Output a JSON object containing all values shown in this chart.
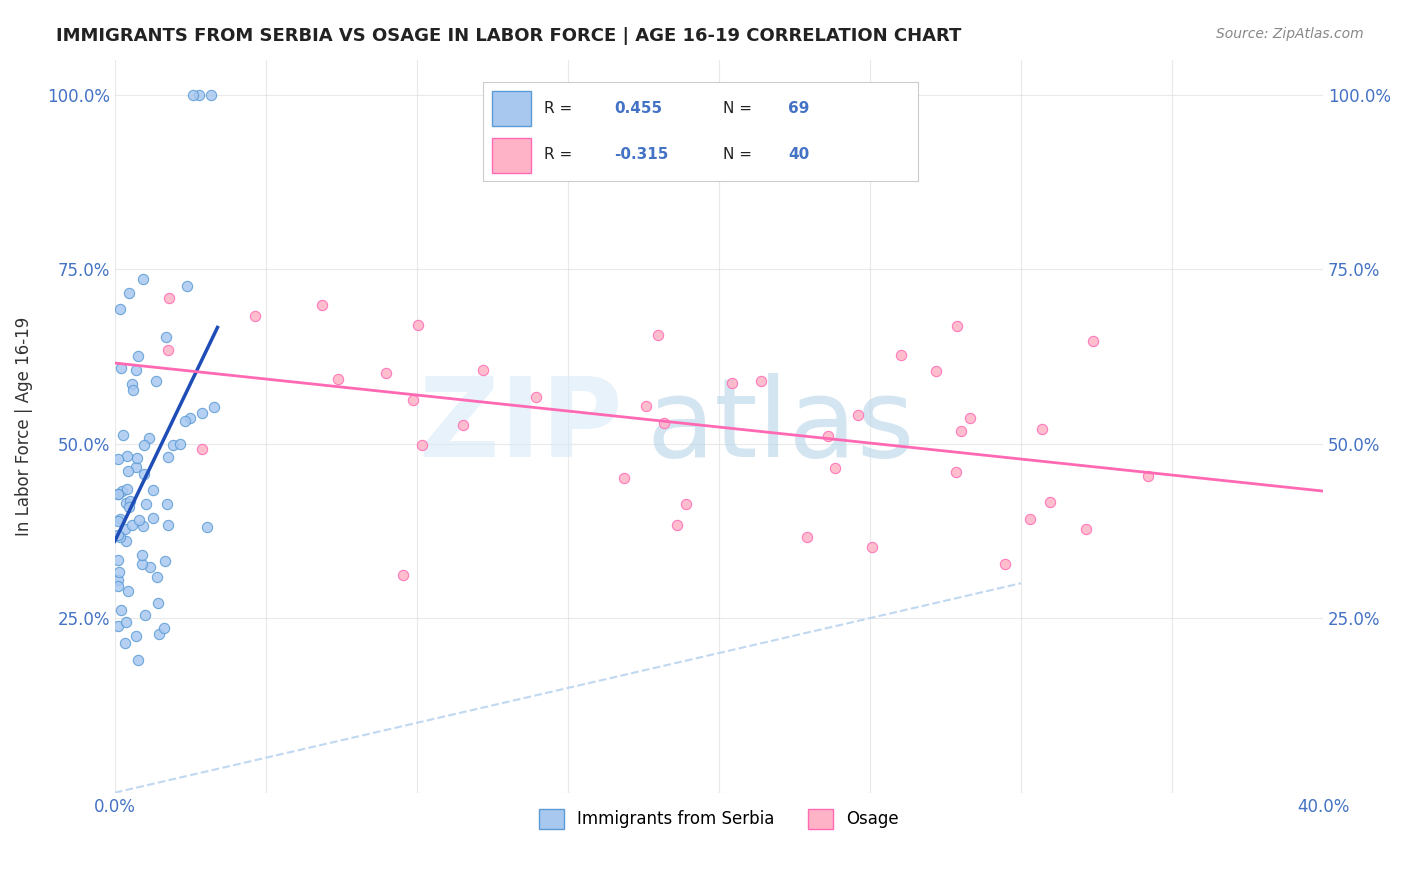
{
  "title": "IMMIGRANTS FROM SERBIA VS OSAGE IN LABOR FORCE | AGE 16-19 CORRELATION CHART",
  "source": "Source: ZipAtlas.com",
  "ylabel": "In Labor Force | Age 16-19",
  "x_min": 0.0,
  "x_max": 0.4,
  "y_min": 0.0,
  "y_max": 1.05,
  "serbia_color": "#a8c8f0",
  "serbia_edge_color": "#5b9bd5",
  "osage_color": "#ffb3c6",
  "osage_edge_color": "#ff69b4",
  "serbia_R": 0.455,
  "serbia_N": 69,
  "osage_R": -0.315,
  "osage_N": 40,
  "serbia_line_color": "#1e4db7",
  "osage_line_color": "#ff69b4",
  "diagonal_color": "#c0d8f0",
  "legend_text_color": "#4472c4",
  "tick_color": "#4472c4"
}
